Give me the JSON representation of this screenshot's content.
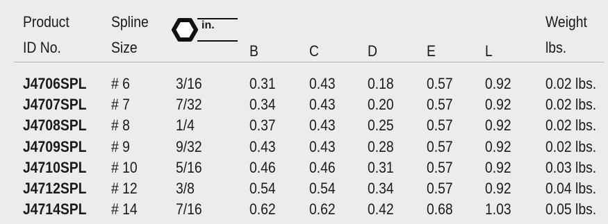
{
  "headers": {
    "product_line1": "Product",
    "product_line2": "ID No.",
    "spline_line1": "Spline",
    "spline_line2": "Size",
    "hex_unit": "in.",
    "b": "B",
    "c": "C",
    "d": "D",
    "e": "E",
    "l": "L",
    "weight_line1": "Weight",
    "weight_line2": "lbs."
  },
  "rows": [
    {
      "pid": "J4706SPL",
      "spline": "# 6",
      "hex": "3/16",
      "b": "0.31",
      "c": "0.43",
      "d": "0.18",
      "e": "0.57",
      "l": "0.92",
      "w": "0.02 lbs."
    },
    {
      "pid": "J4707SPL",
      "spline": "# 7",
      "hex": "7/32",
      "b": "0.34",
      "c": "0.43",
      "d": "0.20",
      "e": "0.57",
      "l": "0.92",
      "w": "0.02 lbs."
    },
    {
      "pid": "J4708SPL",
      "spline": "# 8",
      "hex": "1/4",
      "b": "0.37",
      "c": "0.43",
      "d": "0.25",
      "e": "0.57",
      "l": "0.92",
      "w": "0.02 lbs."
    },
    {
      "pid": "J4709SPL",
      "spline": "# 9",
      "hex": "9/32",
      "b": "0.43",
      "c": "0.43",
      "d": "0.28",
      "e": "0.57",
      "l": "0.92",
      "w": "0.02 lbs."
    },
    {
      "pid": "J4710SPL",
      "spline": "# 10",
      "hex": "5/16",
      "b": "0.46",
      "c": "0.46",
      "d": "0.31",
      "e": "0.57",
      "l": "0.92",
      "w": "0.03 lbs."
    },
    {
      "pid": "J4712SPL",
      "spline": "# 12",
      "hex": "3/8",
      "b": "0.54",
      "c": "0.54",
      "d": "0.34",
      "e": "0.57",
      "l": "0.92",
      "w": "0.04 lbs."
    },
    {
      "pid": "J4714SPL",
      "spline": "# 14",
      "hex": "7/16",
      "b": "0.62",
      "c": "0.62",
      "d": "0.42",
      "e": "0.68",
      "l": "1.03",
      "w": "0.05 lbs."
    }
  ]
}
